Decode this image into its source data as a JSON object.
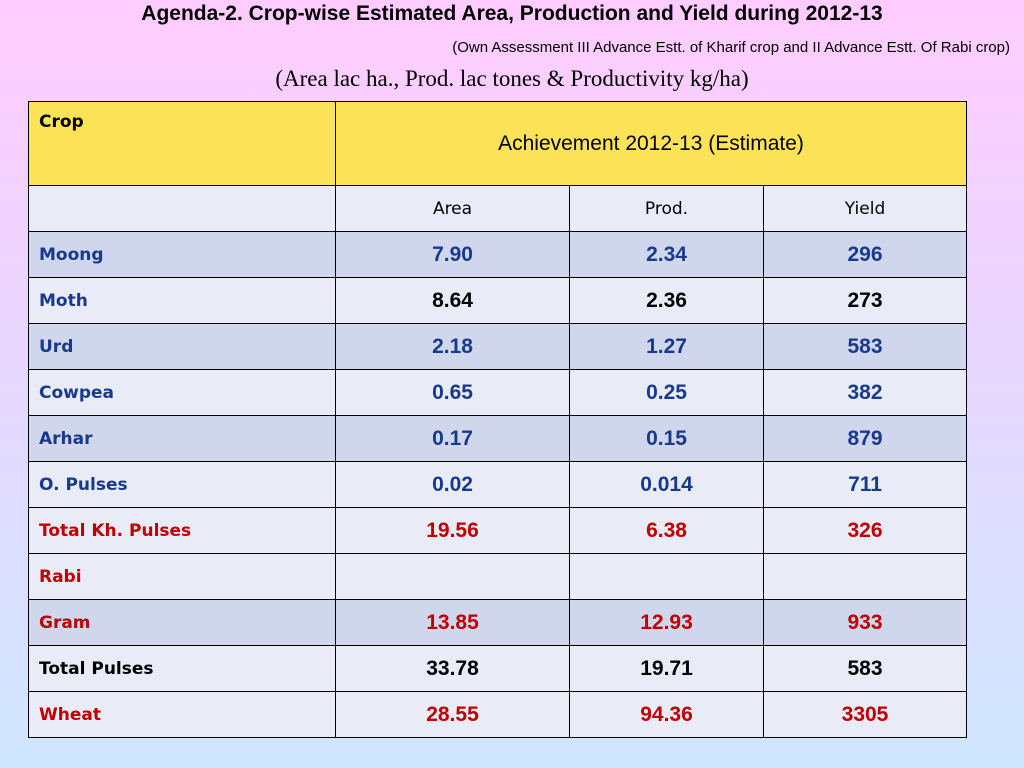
{
  "header": {
    "title": "Agenda-2. Crop-wise  Estimated Area, Production and Yield during 2012-13",
    "subtitle": "(Own Assessment III Advance Estt. of Kharif crop and II Advance Estt. Of Rabi crop)",
    "units": "(Area lac ha., Prod. lac tones & Productivity kg/ha)"
  },
  "table": {
    "col_crop_header": "Crop",
    "group_header": "Achievement 2012-13 (Estimate)",
    "sub_headers": [
      "Area",
      "Prod.",
      "Yield"
    ],
    "colors": {
      "blue": "#173a8c",
      "black": "#000000",
      "red": "#c00000",
      "header_bg": "#fbe257"
    },
    "rows": [
      {
        "crop": "Moong",
        "area": "7.90",
        "prod": "2.34",
        "yield": "296"
      },
      {
        "crop": "Moth",
        "area": "8.64",
        "prod": "2.36",
        "yield": "273"
      },
      {
        "crop": "Urd",
        "area": "2.18",
        "prod": "1.27",
        "yield": "583"
      },
      {
        "crop": "Cowpea",
        "area": "0.65",
        "prod": "0.25",
        "yield": "382"
      },
      {
        "crop": "Arhar",
        "area": "0.17",
        "prod": "0.15",
        "yield": "879"
      },
      {
        "crop": "O. Pulses",
        "area": "0.02",
        "prod": "0.014",
        "yield": "711"
      },
      {
        "crop": "Total Kh. Pulses",
        "area": "19.56",
        "prod": "6.38",
        "yield": "326"
      },
      {
        "crop": "Rabi",
        "area": "",
        "prod": "",
        "yield": ""
      },
      {
        "crop": "Gram",
        "area": "13.85",
        "prod": "12.93",
        "yield": "933"
      },
      {
        "crop": "Total Pulses",
        "area": "33.78",
        "prod": "19.71",
        "yield": "583"
      },
      {
        "crop": "Wheat",
        "area": "28.55",
        "prod": "94.36",
        "yield": "3305"
      }
    ]
  }
}
